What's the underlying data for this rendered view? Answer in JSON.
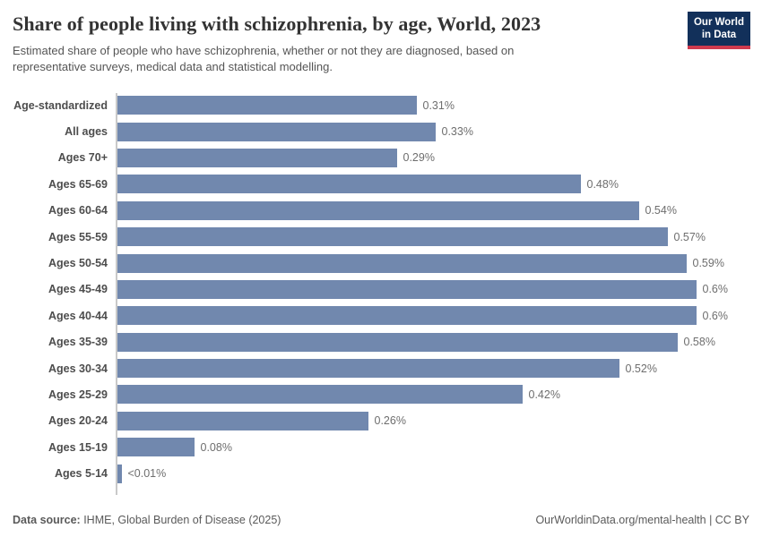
{
  "header": {
    "title": "Share of people living with schizophrenia, by age, World, 2023",
    "subtitle_lines": [
      "Estimated share of people who have schizophrenia, whether or not they are diagnosed, based on",
      "representative surveys, medical data and statistical modelling."
    ],
    "logo": {
      "line1": "Our World",
      "line2": "in Data"
    }
  },
  "chart_data": {
    "type": "bar",
    "orientation": "horizontal",
    "title": "Share of people living with schizophrenia, by age, World, 2023",
    "subtitle": "Estimated share of people who have schizophrenia, whether or not they are diagnosed, based on representative surveys, medical data and statistical modelling.",
    "categories": [
      "Age-standardized",
      "All ages",
      "Ages 70+",
      "Ages 65-69",
      "Ages 60-64",
      "Ages 55-59",
      "Ages 50-54",
      "Ages 45-49",
      "Ages 40-44",
      "Ages 35-39",
      "Ages 30-34",
      "Ages 25-29",
      "Ages 20-24",
      "Ages 15-19",
      "Ages 5-14"
    ],
    "values": [
      0.31,
      0.33,
      0.29,
      0.48,
      0.54,
      0.57,
      0.59,
      0.6,
      0.6,
      0.58,
      0.52,
      0.42,
      0.26,
      0.08,
      0.004
    ],
    "value_labels": [
      "0.31%",
      "0.33%",
      "0.29%",
      "0.48%",
      "0.54%",
      "0.57%",
      "0.59%",
      "0.6%",
      "0.6%",
      "0.58%",
      "0.52%",
      "0.42%",
      "0.26%",
      "0.08%",
      "<0.01%"
    ],
    "unit": "%",
    "xlabel": "",
    "ylabel": "",
    "xlim": [
      0,
      0.62
    ],
    "grid": false,
    "legend": false,
    "bar_color": "#7188ae",
    "axis_color": "#c9c9c9"
  },
  "footer": {
    "source_label": "Data source:",
    "source_value": " IHME, Global Burden of Disease (2025)",
    "credit": "OurWorldinData.org/mental-health | CC BY"
  }
}
